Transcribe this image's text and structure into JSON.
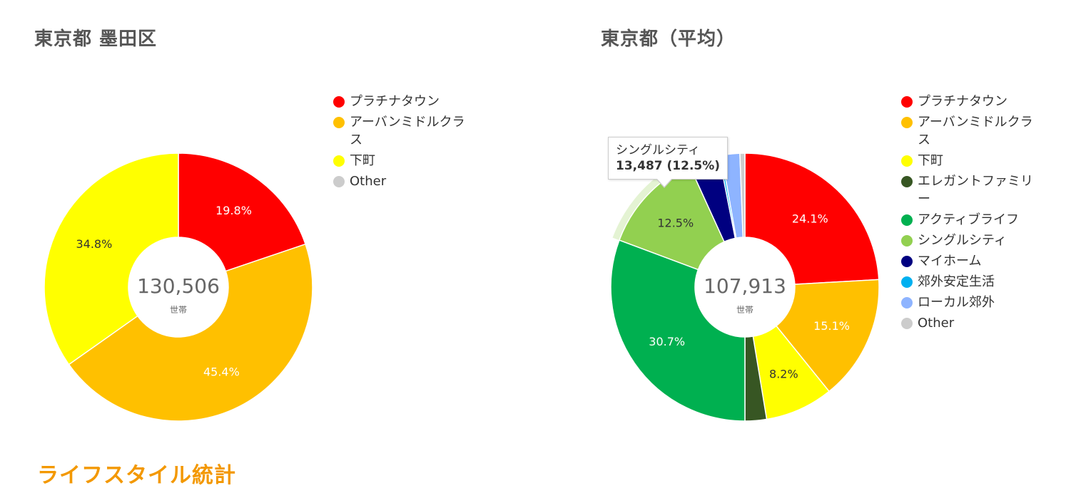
{
  "chart_data": [
    {
      "type": "pie",
      "title": "東京都 墨田区",
      "center_value": "130,506",
      "center_unit": "世帯",
      "categories": [
        "プラチナタウン",
        "アーバンミドルクラス",
        "下町",
        "Other"
      ],
      "values": [
        19.8,
        45.4,
        34.8,
        0
      ],
      "value_labels": [
        "19.8%",
        "45.4%",
        "34.8%",
        ""
      ],
      "colors": [
        "#ff0000",
        "#ffc000",
        "#ffff00",
        "#cccccc"
      ],
      "label_colors": [
        "#ffffff",
        "#ffffff",
        "#333333",
        "#333333"
      ],
      "legend_position": "right"
    },
    {
      "type": "pie",
      "title": "東京都（平均）",
      "center_value": "107,913",
      "center_unit": "世帯",
      "categories": [
        "プラチナタウン",
        "アーバンミドルクラス",
        "下町",
        "エレガントファミリー",
        "アクティブライフ",
        "シングルシティ",
        "マイホーム",
        "郊外安定生活",
        "ローカル郊外",
        "Other"
      ],
      "values": [
        24.1,
        15.1,
        8.2,
        2.6,
        30.7,
        12.5,
        3.7,
        0.3,
        2.2,
        0.6
      ],
      "value_labels": [
        "24.1%",
        "15.1%",
        "8.2%",
        "",
        "30.7%",
        "12.5%",
        "",
        "",
        "",
        ""
      ],
      "colors": [
        "#ff0000",
        "#ffc000",
        "#ffff00",
        "#375623",
        "#00b050",
        "#92d050",
        "#000080",
        "#00b0f0",
        "#8eb4ff",
        "#cccccc"
      ],
      "label_colors": [
        "#ffffff",
        "#ffffff",
        "#333333",
        "#ffffff",
        "#ffffff",
        "#333333",
        "#ffffff",
        "#ffffff",
        "#ffffff",
        "#ffffff"
      ],
      "hover_index": 5,
      "legend_position": "right",
      "tooltip": {
        "label": "シングルシティ",
        "value": "13,487 (12.5%)"
      }
    }
  ],
  "section_heading": "ライフスタイル統計"
}
